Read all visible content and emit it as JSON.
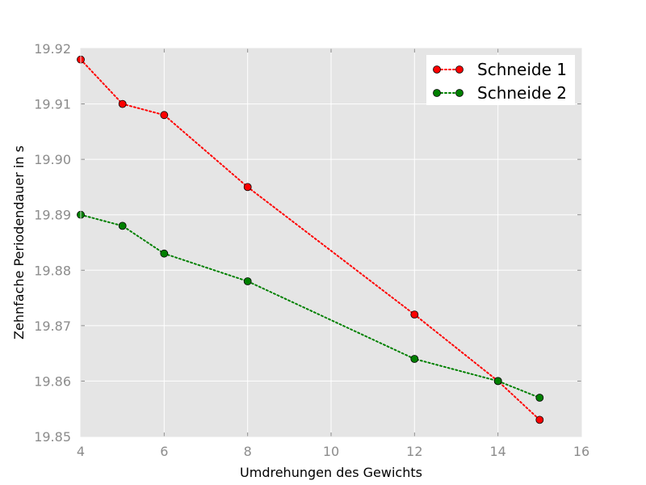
{
  "chart_data": {
    "type": "line",
    "xlabel": "Umdrehungen des Gewichts",
    "ylabel": "Zehnfache Periodendauer in s",
    "xlim": [
      4,
      16
    ],
    "ylim": [
      19.85,
      19.92
    ],
    "xticks": [
      4,
      6,
      8,
      10,
      12,
      14,
      16
    ],
    "yticks": [
      19.85,
      19.86,
      19.87,
      19.88,
      19.89,
      19.9,
      19.91,
      19.92
    ],
    "grid": true,
    "legend_position": "top-right",
    "series": [
      {
        "name": "Schneide 1",
        "color": "#ff0000",
        "marker_color": "#ff0000",
        "linestyle": "dotted",
        "x": [
          4,
          5,
          6,
          8,
          12,
          14,
          15
        ],
        "y": [
          19.918,
          19.91,
          19.908,
          19.895,
          19.872,
          19.86,
          19.853
        ]
      },
      {
        "name": "Schneide 2",
        "color": "#008000",
        "marker_color": "#008000",
        "linestyle": "dotted",
        "x": [
          4,
          5,
          6,
          8,
          12,
          14,
          15
        ],
        "y": [
          19.89,
          19.888,
          19.883,
          19.878,
          19.864,
          19.86,
          19.857
        ]
      }
    ]
  }
}
